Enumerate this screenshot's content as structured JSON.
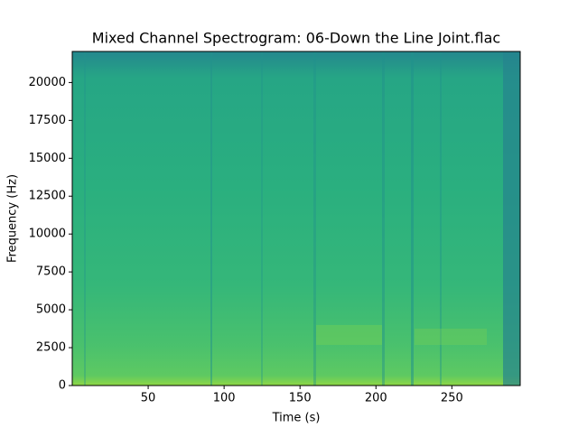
{
  "chart_data": {
    "type": "spectrogram",
    "title": "Mixed Channel Spectrogram: 06-Down the Line Joint.flac",
    "xlabel": "Time (s)",
    "ylabel": "Frequency (Hz)",
    "xlim": [
      0,
      295
    ],
    "xticks": [
      50,
      100,
      150,
      200,
      250
    ],
    "ylim": [
      0,
      22050
    ],
    "yticks": [
      0,
      2500,
      5000,
      7500,
      10000,
      12500,
      15000,
      17500,
      20000
    ]
  }
}
